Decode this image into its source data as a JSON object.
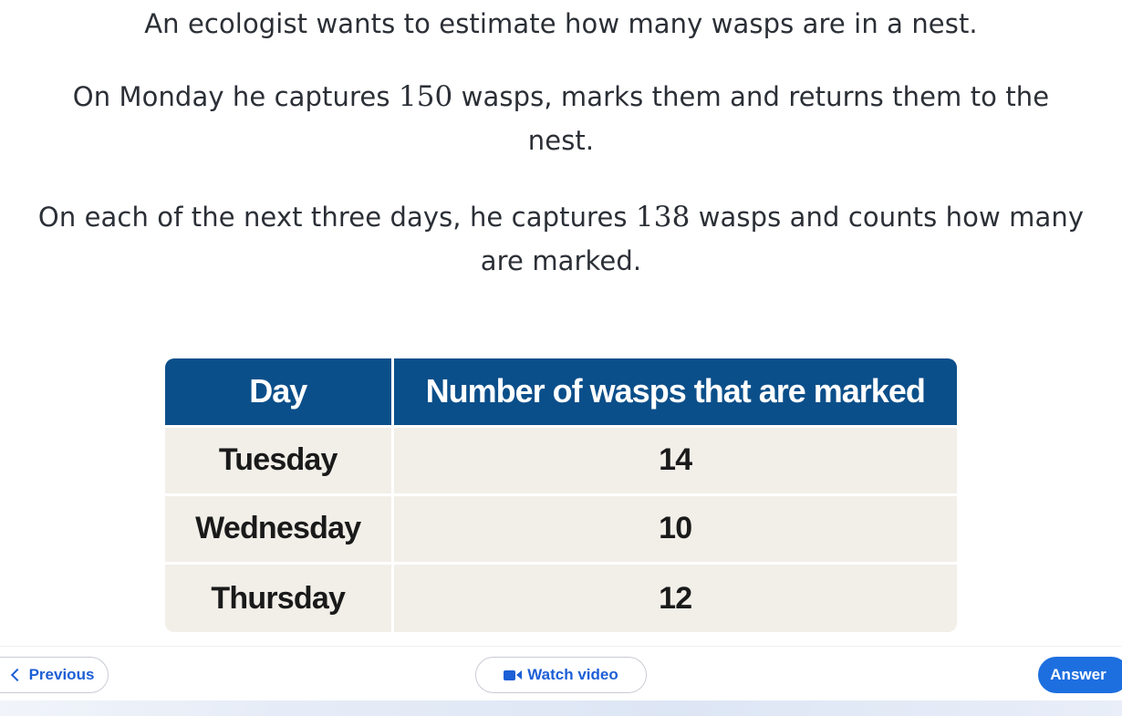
{
  "question": {
    "line1": "An ecologist wants to estimate how many wasps are in a nest.",
    "line2_pre": "On Monday he captures ",
    "line2_num": "150",
    "line2_post": " wasps, marks them and returns them to the nest.",
    "line3_pre": "On each of the next three days, he captures ",
    "line3_num": "138",
    "line3_post": " wasps and counts how many are marked."
  },
  "table": {
    "headers": [
      "Day",
      "Number of wasps that are marked"
    ],
    "rows": [
      [
        "Tuesday",
        "14"
      ],
      [
        "Wednesday",
        "10"
      ],
      [
        "Thursday",
        "12"
      ]
    ]
  },
  "footer": {
    "previous_label": "Previous",
    "video_label": "Watch video",
    "answer_label": "Answer"
  },
  "colors": {
    "header_bg": "#0b4f8a",
    "row_bg": "#f2efe9",
    "accent": "#1d6fe0"
  },
  "icons": {
    "previous": "chevron-left-icon",
    "video": "video-camera-icon"
  }
}
